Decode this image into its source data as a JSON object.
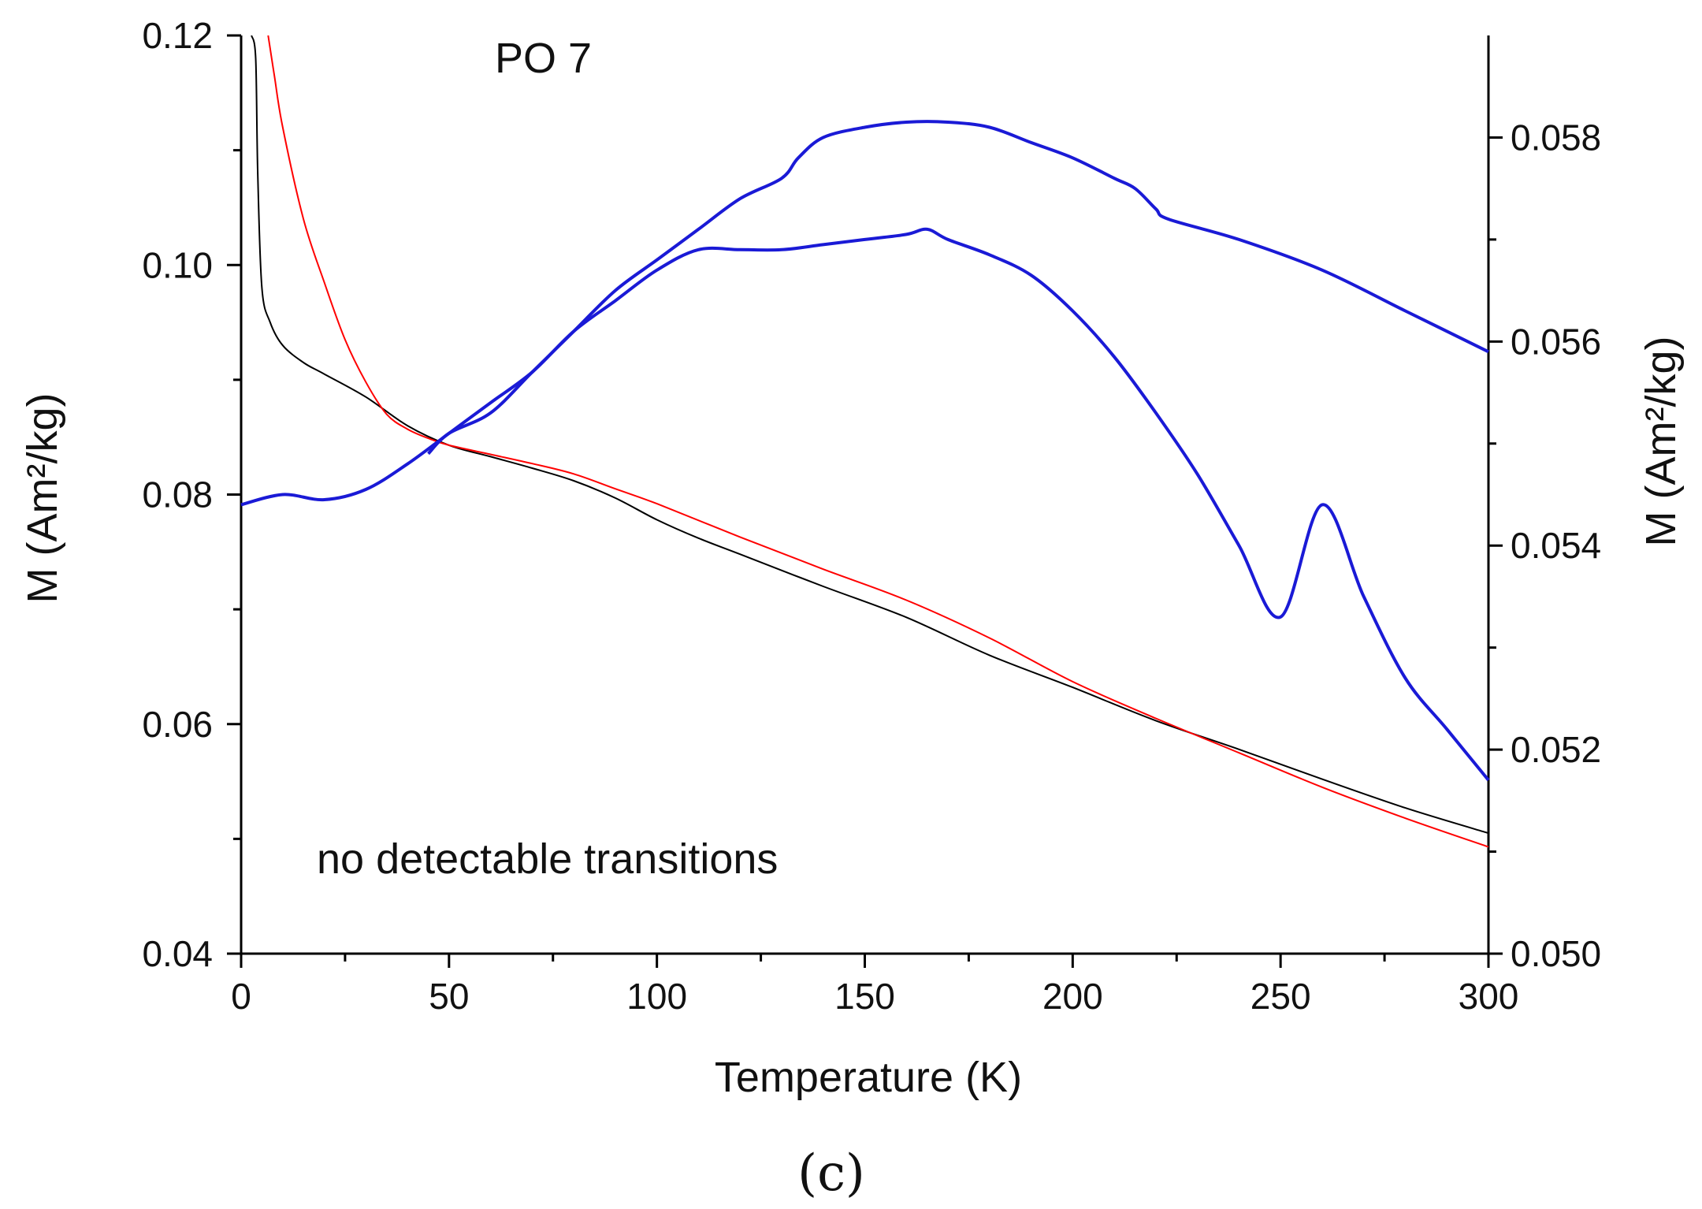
{
  "chart_data": {
    "type": "line",
    "title": "PO 7",
    "annotation": "no detectable transitions",
    "panel_label": "(c)",
    "xlabel": "Temperature (K)",
    "ylabel_left": "M (Am²/kg)",
    "ylabel_right": "M (Am²/kg)",
    "xlim": [
      0,
      300
    ],
    "ylim_left": [
      0.04,
      0.12
    ],
    "ylim_right": [
      0.05,
      0.059
    ],
    "x_ticks": [
      "0",
      "50",
      "100",
      "150",
      "200",
      "250",
      "300"
    ],
    "y_ticks_left": [
      "0.04",
      "0.06",
      "0.08",
      "0.10",
      "0.12"
    ],
    "y_ticks_right": [
      "0.050",
      "0.052",
      "0.054",
      "0.056",
      "0.058"
    ],
    "colors": {
      "black_curve": "#000000",
      "red_curve": "#ff0000",
      "blue_curve": "#1a1ad6"
    },
    "series": [
      {
        "name": "black curve (left axis)",
        "axis": "left",
        "color": "#000000",
        "x": [
          2.5,
          3.5,
          4,
          5,
          7,
          10,
          15,
          20,
          30,
          40,
          50,
          60,
          70,
          80,
          90,
          100,
          110,
          120,
          140,
          160,
          180,
          200,
          220,
          240,
          260,
          280,
          300
        ],
        "y": [
          0.12,
          0.118,
          0.108,
          0.098,
          0.095,
          0.093,
          0.0915,
          0.0905,
          0.0885,
          0.086,
          0.0843,
          0.0833,
          0.0823,
          0.0812,
          0.0797,
          0.0778,
          0.0762,
          0.0748,
          0.072,
          0.0693,
          0.066,
          0.0632,
          0.0603,
          0.0578,
          0.0552,
          0.0527,
          0.0505
        ]
      },
      {
        "name": "red curve (left axis)",
        "axis": "left",
        "color": "#ff0000",
        "x": [
          6.5,
          8,
          10,
          15,
          20,
          25,
          30,
          35,
          40,
          45,
          50,
          60,
          70,
          80,
          90,
          100,
          120,
          140,
          160,
          180,
          200,
          220,
          240,
          260,
          280,
          300
        ],
        "y": [
          0.12,
          0.1165,
          0.112,
          0.104,
          0.0985,
          0.0935,
          0.0898,
          0.087,
          0.0857,
          0.0849,
          0.0843,
          0.0835,
          0.0827,
          0.0818,
          0.0805,
          0.0792,
          0.0763,
          0.0735,
          0.0708,
          0.0675,
          0.0637,
          0.0605,
          0.0575,
          0.0545,
          0.0518,
          0.0493
        ]
      },
      {
        "name": "blue curve, lower branch (right axis)",
        "axis": "right",
        "color": "#1a1ad6",
        "x": [
          0,
          10,
          20,
          30,
          40,
          50,
          60,
          70,
          80,
          90,
          100,
          110,
          120,
          130,
          140,
          150,
          160,
          165,
          170,
          180,
          190,
          200,
          210,
          220,
          230,
          240,
          250,
          260,
          270,
          280,
          290,
          300
        ],
        "y": [
          0.0544,
          0.0545,
          0.05445,
          0.05455,
          0.0548,
          0.0551,
          0.0554,
          0.0557,
          0.0561,
          0.0564,
          0.0567,
          0.0569,
          0.0569,
          0.0569,
          0.05695,
          0.057,
          0.05705,
          0.0571,
          0.057,
          0.05685,
          0.05665,
          0.0563,
          0.05585,
          0.0553,
          0.0547,
          0.054,
          0.0533,
          0.0544,
          0.0535,
          0.0527,
          0.0522,
          0.0517
        ]
      },
      {
        "name": "blue curve, upper branch (right axis)",
        "axis": "right",
        "color": "#1a1ad6",
        "x": [
          45,
          50,
          60,
          70,
          80,
          90,
          100,
          110,
          120,
          130,
          134,
          140,
          150,
          160,
          170,
          180,
          190,
          200,
          210,
          215,
          220,
          223,
          240,
          260,
          280,
          300
        ],
        "y": [
          0.0549,
          0.0551,
          0.0553,
          0.0557,
          0.0561,
          0.0565,
          0.0568,
          0.0571,
          0.0574,
          0.0576,
          0.0578,
          0.058,
          0.0581,
          0.05815,
          0.05815,
          0.0581,
          0.05795,
          0.0578,
          0.0576,
          0.0575,
          0.0573,
          0.0572,
          0.057,
          0.0567,
          0.0563,
          0.0559
        ]
      }
    ]
  }
}
